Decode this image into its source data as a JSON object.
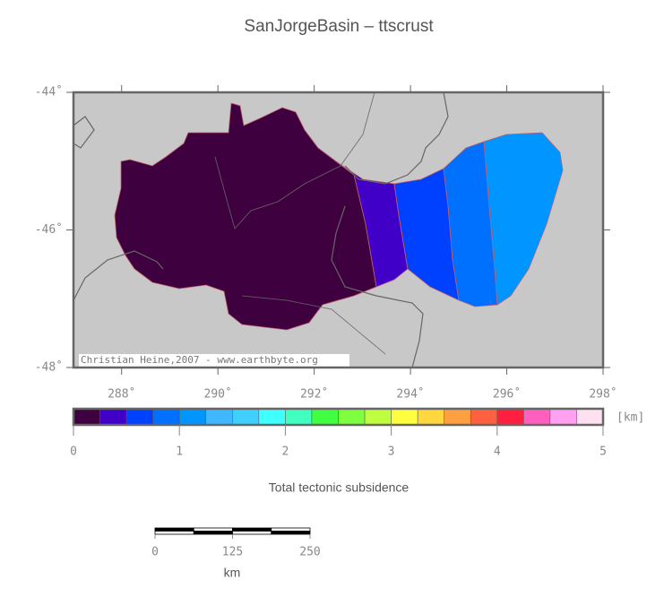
{
  "title": "SanJorgeBasin – ttscrust",
  "map": {
    "xlim": [
      287,
      298
    ],
    "ylim": [
      -48,
      -44
    ],
    "xticks": [
      {
        "value": 288,
        "label": "288˚"
      },
      {
        "value": 290,
        "label": "290˚"
      },
      {
        "value": 292,
        "label": "292˚"
      },
      {
        "value": 294,
        "label": "294˚"
      },
      {
        "value": 296,
        "label": "296˚"
      },
      {
        "value": 298,
        "label": "298˚"
      }
    ],
    "yticks": [
      {
        "value": -44,
        "label": "-44˚"
      },
      {
        "value": -46,
        "label": "-46˚"
      },
      {
        "value": -48,
        "label": "-48˚"
      }
    ],
    "credit": "Christian Heine,2007 - www.earthbyte.org"
  },
  "colorbar": {
    "lim": [
      0,
      5
    ],
    "ticks": [
      0,
      1,
      2,
      3,
      4,
      5
    ],
    "unit": "[km]",
    "label": "Total tectonic subsidence",
    "colors": [
      "#3f0040",
      "#4000c8",
      "#0040ff",
      "#0070ff",
      "#0095ff",
      "#40b8ff",
      "#40d0ff",
      "#40ffff",
      "#40ffc0",
      "#40ff40",
      "#80ff40",
      "#c0ff40",
      "#ffff40",
      "#ffd840",
      "#ffa040",
      "#ff6040",
      "#ff2040",
      "#ff60c0",
      "#ffa0f0",
      "#ffe0f0"
    ]
  },
  "scalebar": {
    "lim": [
      0,
      250
    ],
    "ticks": [
      0,
      125,
      250
    ],
    "unit": "km"
  }
}
